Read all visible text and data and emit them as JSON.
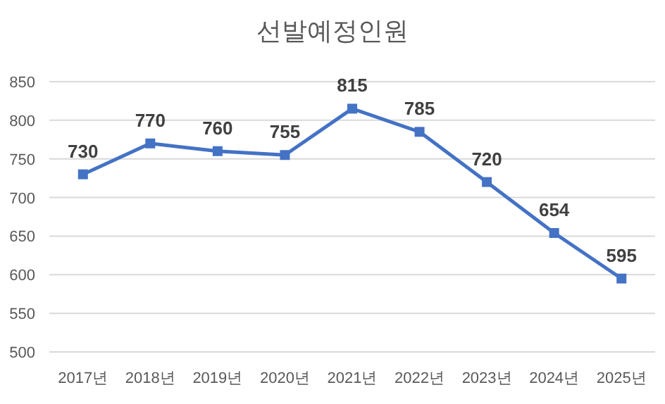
{
  "chart_data": {
    "type": "line",
    "title": "선발예정인원",
    "categories": [
      "2017년",
      "2018년",
      "2019년",
      "2020년",
      "2021년",
      "2022년",
      "2023년",
      "2024년",
      "2025년"
    ],
    "series": [
      {
        "color": "#4472c4",
        "values": [
          730,
          770,
          760,
          755,
          815,
          785,
          720,
          654,
          595
        ]
      }
    ],
    "ylim": [
      500,
      850
    ],
    "yticks": [
      500,
      550,
      600,
      650,
      700,
      750,
      800,
      850
    ],
    "grid": "y",
    "marker": "square",
    "line_style": "solid",
    "data_labels": true
  }
}
